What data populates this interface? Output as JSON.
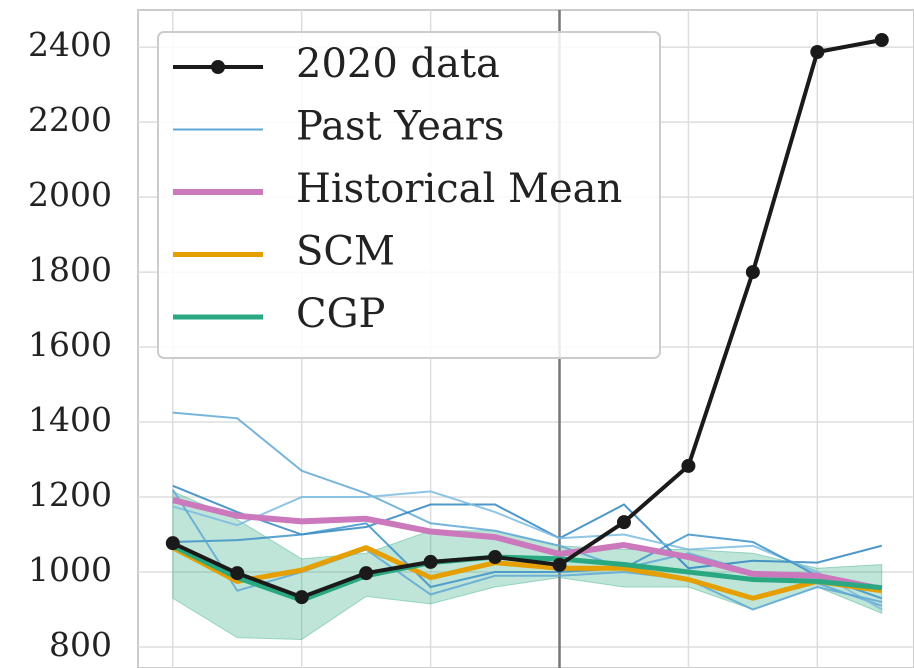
{
  "chart_data": {
    "type": "line",
    "x": [
      0,
      1,
      2,
      3,
      4,
      5,
      6,
      7,
      8,
      9,
      10,
      11
    ],
    "xlim": [
      -0.54,
      11.5
    ],
    "xticks": [
      0,
      2,
      4,
      6,
      8,
      10
    ],
    "ylim": [
      744,
      2499
    ],
    "yticks": [
      800,
      1000,
      1200,
      1400,
      1600,
      1800,
      2000,
      2200,
      2400
    ],
    "grid": true,
    "vline": 6,
    "legend": "upper left",
    "series": [
      {
        "name": "2020 data",
        "color": "#1a1a1a",
        "width": 4,
        "marker": true,
        "values": [
          1077,
          997,
          933,
          997,
          1027,
          1040,
          1019,
          1133,
          1283,
          1800,
          2387,
          2419
        ]
      },
      {
        "name": "Past Years",
        "color": "#5fa8d3",
        "width": 2,
        "values": [
          [
            1425,
            1410,
            1270,
            1210,
            1130,
            1110,
            1070,
            1010,
            1050,
            1000,
            970,
            910
          ],
          [
            1230,
            1160,
            1100,
            1120,
            1180,
            1180,
            1090,
            1180,
            1010,
            1030,
            1025,
            1070
          ],
          [
            1175,
            1125,
            1200,
            1200,
            1215,
            1160,
            1090,
            1100,
            1060,
            1070,
            1000,
            900
          ],
          [
            1080,
            1085,
            1100,
            1130,
            960,
            1000,
            1000,
            1010,
            1100,
            1080,
            990,
            930
          ],
          [
            1220,
            950,
            1000,
            1060,
            940,
            990,
            990,
            1000,
            980,
            900,
            960,
            920
          ]
        ]
      },
      {
        "name": "Historical Mean",
        "color": "#cc78bc",
        "width": 6,
        "values": [
          1192,
          1150,
          1135,
          1142,
          1108,
          1093,
          1048,
          1072,
          1040,
          995,
          990,
          955
        ]
      },
      {
        "name": "SCM",
        "color": "#e69f00",
        "width": 5,
        "values": [
          1065,
          975,
          1005,
          1065,
          985,
          1025,
          1010,
          1010,
          980,
          930,
          975,
          950
        ]
      },
      {
        "name": "CGP",
        "color": "#2aa882",
        "width": 5,
        "values": [
          1070,
          985,
          925,
          990,
          1025,
          1040,
          1035,
          1020,
          1000,
          980,
          975,
          958
        ]
      }
    ],
    "band": {
      "color": "#2aa882",
      "lower": [
        930,
        825,
        820,
        935,
        915,
        960,
        985,
        960,
        960,
        900,
        960,
        890
      ],
      "upper": [
        1215,
        1140,
        1035,
        1050,
        1110,
        1110,
        1070,
        1060,
        1060,
        1050,
        1010,
        1020
      ]
    }
  }
}
